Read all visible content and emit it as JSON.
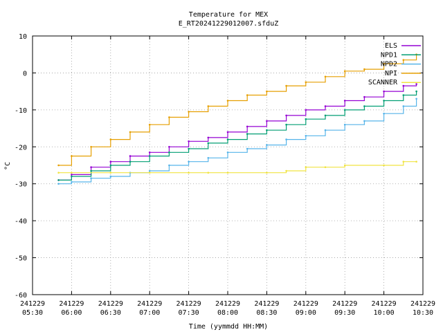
{
  "chart_data": {
    "type": "line",
    "title": "Temperature for MEX",
    "subtitle": "E_RT20241229012007.sfduZ",
    "xlabel": "Time (yymmdd HH:MM)",
    "ylabel": "°C",
    "ylim": [
      -60,
      10
    ],
    "yticks": [
      10,
      0,
      -10,
      -20,
      -30,
      -40,
      -50,
      -60
    ],
    "xlim": [
      "2024-12-29 05:30",
      "2024-12-29 10:30"
    ],
    "xticks": [
      {
        "date": "241229",
        "time": "05:30"
      },
      {
        "date": "241229",
        "time": "06:00"
      },
      {
        "date": "241229",
        "time": "06:30"
      },
      {
        "date": "241229",
        "time": "07:00"
      },
      {
        "date": "241229",
        "time": "07:30"
      },
      {
        "date": "241229",
        "time": "08:00"
      },
      {
        "date": "241229",
        "time": "08:30"
      },
      {
        "date": "241229",
        "time": "09:00"
      },
      {
        "date": "241229",
        "time": "09:30"
      },
      {
        "date": "241229",
        "time": "10:00"
      },
      {
        "date": "241229",
        "time": "10:30"
      }
    ],
    "grid": true,
    "legend_position": "top-right",
    "series": [
      {
        "name": "ELS",
        "color": "#9400d3",
        "x": [
          "05:50",
          "06:00",
          "06:15",
          "06:30",
          "06:45",
          "07:00",
          "07:15",
          "07:30",
          "07:45",
          "08:00",
          "08:15",
          "08:30",
          "08:45",
          "09:00",
          "09:15",
          "09:30",
          "09:45",
          "10:00",
          "10:15",
          "10:25"
        ],
        "y": [
          -29,
          -27.5,
          -25.5,
          -24,
          -22.5,
          -21.5,
          -20,
          -18.5,
          -17.5,
          -16,
          -14.5,
          -13,
          -11.5,
          -10,
          -9,
          -7.5,
          -6.5,
          -5,
          -3.5,
          -3
        ]
      },
      {
        "name": "NPD1",
        "color": "#009e73",
        "x": [
          "05:50",
          "06:00",
          "06:15",
          "06:30",
          "06:45",
          "07:00",
          "07:15",
          "07:30",
          "07:45",
          "08:00",
          "08:15",
          "08:30",
          "08:45",
          "09:00",
          "09:15",
          "09:30",
          "09:45",
          "10:00",
          "10:15",
          "10:25"
        ],
        "y": [
          -29,
          -28,
          -26.5,
          -25,
          -24,
          -22.5,
          -21.5,
          -20.5,
          -19,
          -18,
          -16.5,
          -15.5,
          -14,
          -12.5,
          -11.5,
          -10,
          -9,
          -7.5,
          -6,
          -5
        ]
      },
      {
        "name": "NPD2",
        "color": "#56b4e9",
        "x": [
          "05:50",
          "06:00",
          "06:15",
          "06:30",
          "06:45",
          "07:00",
          "07:15",
          "07:30",
          "07:45",
          "08:00",
          "08:15",
          "08:30",
          "08:45",
          "09:00",
          "09:15",
          "09:30",
          "09:45",
          "10:00",
          "10:15",
          "10:25"
        ],
        "y": [
          -30,
          -29.5,
          -28.5,
          -28,
          -27,
          -26.5,
          -25,
          -24,
          -23,
          -21.5,
          -20.5,
          -19.5,
          -18,
          -17,
          -15.5,
          -14,
          -13,
          -11,
          -9,
          -7
        ]
      },
      {
        "name": "NPI",
        "color": "#e69f00",
        "x": [
          "05:50",
          "06:00",
          "06:15",
          "06:30",
          "06:45",
          "07:00",
          "07:15",
          "07:30",
          "07:45",
          "08:00",
          "08:15",
          "08:30",
          "08:45",
          "09:00",
          "09:15",
          "09:30",
          "09:45",
          "10:00",
          "10:15",
          "10:25"
        ],
        "y": [
          -25,
          -22.5,
          -20,
          -18,
          -16,
          -14,
          -12,
          -10.5,
          -9,
          -7.5,
          -6,
          -5,
          -3.5,
          -2.5,
          -1,
          0.5,
          1,
          2.5,
          3.5,
          5
        ]
      },
      {
        "name": "SCANNER",
        "color": "#f0e442",
        "x": [
          "05:50",
          "06:00",
          "06:30",
          "07:00",
          "07:30",
          "07:45",
          "08:00",
          "08:30",
          "08:45",
          "09:00",
          "09:15",
          "09:30",
          "10:00",
          "10:15",
          "10:25"
        ],
        "y": [
          -27,
          -27,
          -27,
          -27,
          -27,
          -27,
          -27,
          -27,
          -26.5,
          -25.5,
          -25.5,
          -25,
          -25,
          -24,
          -24
        ]
      }
    ]
  }
}
